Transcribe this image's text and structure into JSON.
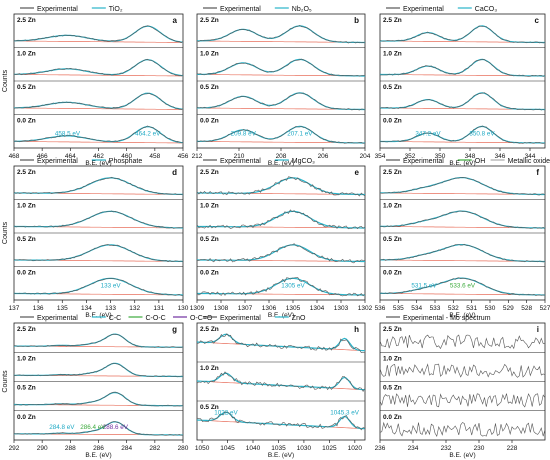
{
  "figure": {
    "ylabel": "Counts",
    "xlabel": "B.E. (eV)",
    "colors": {
      "experimental": "#555555",
      "fit": "#29b3c9",
      "background": "#e8705e",
      "oh": "#3caa3c",
      "metallic_oxide": "#aaaaaa",
      "coo": "#7030a0",
      "peak_label": "#1fa9c4",
      "oh_label": "#3caa3c",
      "coo_label": "#7030a0"
    }
  },
  "chart_data": [
    {
      "panel": "a",
      "type": "line",
      "legend": [
        "Experimental",
        "TiO₂"
      ],
      "rows": [
        "2.5 Zn",
        "1.0 Zn",
        "0.5 Zn",
        "0.0 Zn"
      ],
      "xlim": [
        468,
        456
      ],
      "xticks": [
        468,
        466,
        464,
        462,
        460,
        458,
        456
      ],
      "peaks": [
        {
          "pos": 458.5,
          "amp": 1.0,
          "w": 0.9
        },
        {
          "pos": 464.2,
          "amp": 0.38,
          "w": 1.4
        }
      ],
      "annotations": [
        "464.2 eV",
        "458.5 eV"
      ],
      "show_xlabel": true
    },
    {
      "panel": "b",
      "type": "line",
      "legend": [
        "Experimental",
        "Nb₂O₅"
      ],
      "rows": [
        "2.5 Zn",
        "1.0 Zn",
        "0.5 Zn",
        "0.0 Zn"
      ],
      "xlim": [
        212,
        204
      ],
      "xticks": [
        212,
        210,
        208,
        206,
        204
      ],
      "peaks": [
        {
          "pos": 209.8,
          "amp": 0.75,
          "w": 0.65
        },
        {
          "pos": 207.1,
          "amp": 1.0,
          "w": 0.65
        }
      ],
      "annotations": [
        "209.8 eV",
        "207.1 eV"
      ],
      "show_xlabel": true
    },
    {
      "panel": "c",
      "type": "line",
      "legend": [
        "Experimental",
        "CaCO₃"
      ],
      "rows": [
        "2.5 Zn",
        "1.0 Zn",
        "0.5 Zn",
        "0.0 Zn"
      ],
      "xlim": [
        354,
        343
      ],
      "xticks": [
        354,
        352,
        350,
        348,
        346,
        344
      ],
      "peaks": [
        {
          "pos": 347.2,
          "amp": 1.0,
          "w": 0.75
        },
        {
          "pos": 350.8,
          "amp": 0.55,
          "w": 0.75
        }
      ],
      "annotations": [
        "350.8 eV",
        "347.2 eV"
      ],
      "show_xlabel": true
    },
    {
      "panel": "d",
      "type": "line",
      "legend": [
        "Experimental",
        "Phosphate"
      ],
      "rows": [
        "2.5 Zn",
        "1.0 Zn",
        "0.5 Zn",
        "0.0 Zn"
      ],
      "xlim": [
        137,
        130
      ],
      "xticks": [
        137,
        136,
        135,
        134,
        133,
        132,
        131,
        130
      ],
      "peaks": [
        {
          "pos": 133.0,
          "amp": 1.0,
          "w": 0.85
        }
      ],
      "annotations": [
        "133 eV"
      ],
      "show_xlabel": true
    },
    {
      "panel": "e",
      "type": "line",
      "legend": [
        "Experimental",
        "MgCO₃"
      ],
      "rows": [
        "2.5 Zn",
        "1.0 Zn",
        "0.5 Zn",
        "0.0 Zn"
      ],
      "xlim": [
        1309,
        1302
      ],
      "xticks": [
        1309,
        1308,
        1307,
        1306,
        1305,
        1304,
        1303,
        1302
      ],
      "peaks": [
        {
          "pos": 1305.0,
          "amp": 1.0,
          "w": 0.7
        }
      ],
      "annotations": [
        "1305 eV"
      ],
      "show_xlabel": true
    },
    {
      "panel": "f",
      "type": "line",
      "legend": [
        "Experimental",
        "OH",
        "Metallic oxide"
      ],
      "rows": [
        "2.5 Zn",
        "1.0 Zn",
        "0.5 Zn",
        "0.0 Zn"
      ],
      "xlim": [
        536,
        527
      ],
      "xticks": [
        536,
        535,
        534,
        533,
        532,
        531,
        530,
        529,
        528,
        527
      ],
      "peaks": [
        {
          "pos": 531.5,
          "amp": 1.0,
          "w": 1.1
        },
        {
          "pos": 533.6,
          "amp": 0.22,
          "w": 0.8
        }
      ],
      "annotations": [
        "533.6 eV",
        "531.5 eV"
      ],
      "show_xlabel": true
    },
    {
      "panel": "g",
      "type": "line",
      "legend": [
        "Experimental",
        "C-C",
        "C-O-C",
        "O-C=O"
      ],
      "rows": [
        "2.5 Zn",
        "1.0 Zn",
        "0.5 Zn",
        "0.0 Zn"
      ],
      "xlim": [
        292,
        280
      ],
      "xticks": [
        292,
        290,
        288,
        286,
        284,
        282,
        280
      ],
      "peaks": [
        {
          "pos": 284.8,
          "amp": 1.0,
          "w": 0.7
        },
        {
          "pos": 286.4,
          "amp": 0.2,
          "w": 0.7
        },
        {
          "pos": 288.6,
          "amp": 0.08,
          "w": 0.7
        }
      ],
      "annotations": [
        "288.6 eV",
        "286.4 eV",
        "284.8 eV"
      ],
      "show_xlabel": true
    },
    {
      "panel": "h",
      "type": "line",
      "legend": [
        "Experimental",
        "ZnO"
      ],
      "rows": [
        "2.5 Zn",
        "1.0 Zn",
        "0.5 Zn"
      ],
      "xlim": [
        1051,
        1018
      ],
      "xticks": [
        1050,
        1045,
        1040,
        1035,
        1030,
        1025,
        1020
      ],
      "peaks": [
        {
          "pos": 1022.0,
          "amp": 0.55,
          "w": 1.0
        },
        {
          "pos": 1045.3,
          "amp": 0.45,
          "w": 1.2
        }
      ],
      "annotations": [
        "1045.3 eV",
        "1022 eV"
      ],
      "show_xlabel": true
    },
    {
      "panel": "i",
      "type": "line",
      "legend": [
        "Experimental - Mo spectrum"
      ],
      "rows": [
        "2.5 Zn",
        "1.0 Zn",
        "0.5 Zn",
        "0.0 Zn"
      ],
      "xlim": [
        236,
        226
      ],
      "xticks": [
        236,
        234,
        232,
        230,
        228
      ],
      "peaks": [],
      "annotations": [],
      "show_xlabel": true
    }
  ]
}
